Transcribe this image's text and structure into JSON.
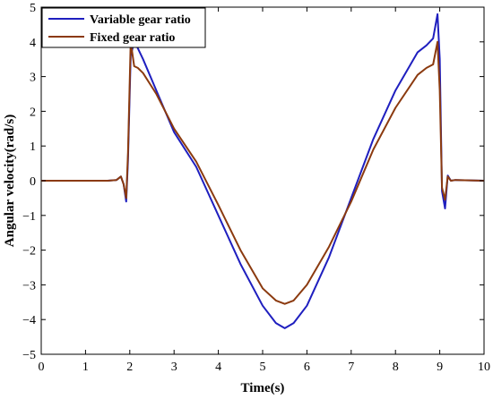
{
  "chart_data": {
    "type": "line",
    "xlabel": "Time(s)",
    "ylabel": "Angular velocity(rad/s)",
    "xlim": [
      0,
      10
    ],
    "ylim": [
      -5,
      5
    ],
    "x_ticks": [
      "0",
      "1",
      "2",
      "3",
      "4",
      "5",
      "6",
      "7",
      "8",
      "9",
      "10"
    ],
    "y_ticks": [
      "5",
      "4",
      "3",
      "2",
      "1",
      "0",
      "−1",
      "−2",
      "−3",
      "−4",
      "−5"
    ],
    "grid": false,
    "legend_position": "top-left",
    "series": [
      {
        "name": "Variable gear ratio",
        "color": "#1f1fbf",
        "x": [
          0,
          1.0,
          1.5,
          1.7,
          1.8,
          1.86,
          1.92,
          1.96,
          2.02,
          2.1,
          2.15,
          2.3,
          2.6,
          3.0,
          3.5,
          4.0,
          4.5,
          5.0,
          5.3,
          5.5,
          5.7,
          6.0,
          6.5,
          7.0,
          7.5,
          8.0,
          8.5,
          8.7,
          8.85,
          8.95,
          9.0,
          9.05,
          9.12,
          9.18,
          9.25,
          9.35,
          10
        ],
        "y": [
          0,
          0,
          0,
          0.02,
          0.12,
          -0.1,
          -0.6,
          0.6,
          3.6,
          4.0,
          3.9,
          3.5,
          2.6,
          1.4,
          0.4,
          -1.0,
          -2.4,
          -3.6,
          -4.1,
          -4.25,
          -4.1,
          -3.6,
          -2.2,
          -0.5,
          1.2,
          2.6,
          3.7,
          3.9,
          4.1,
          4.8,
          3.5,
          -0.3,
          -0.8,
          0.15,
          0.0,
          0.02,
          0
        ]
      },
      {
        "name": "Fixed gear ratio",
        "color": "#8b3a0f",
        "x": [
          0,
          1.0,
          1.5,
          1.7,
          1.8,
          1.86,
          1.92,
          1.96,
          2.02,
          2.1,
          2.18,
          2.3,
          2.6,
          3.0,
          3.5,
          4.0,
          4.5,
          5.0,
          5.3,
          5.5,
          5.7,
          6.0,
          6.5,
          7.0,
          7.5,
          8.0,
          8.5,
          8.7,
          8.85,
          8.95,
          9.0,
          9.05,
          9.12,
          9.18,
          9.25,
          9.35,
          10
        ],
        "y": [
          0,
          0,
          0,
          0.02,
          0.12,
          -0.1,
          -0.5,
          0.8,
          4.0,
          3.3,
          3.25,
          3.1,
          2.5,
          1.5,
          0.55,
          -0.7,
          -2.0,
          -3.1,
          -3.45,
          -3.55,
          -3.45,
          -3.0,
          -1.9,
          -0.6,
          0.9,
          2.1,
          3.05,
          3.25,
          3.35,
          4.0,
          2.6,
          -0.2,
          -0.55,
          0.12,
          0.0,
          0.02,
          0
        ]
      }
    ]
  }
}
